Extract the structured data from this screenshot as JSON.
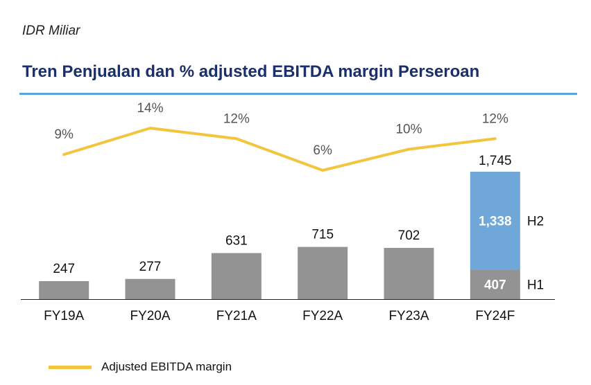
{
  "unit_label": "IDR Miliar",
  "title": "Tren Penjualan dan % adjusted EBITDA margin Perseroan",
  "legend": {
    "margin_label": "Adjusted EBITDA margin"
  },
  "colors": {
    "title": "#1a2f6b",
    "rule": "#5ba3dd",
    "bar": "#939393",
    "h2_bar": "#6fa7d8",
    "line": "#f2c53d"
  },
  "chart_data": {
    "type": "bar",
    "title": "Tren Penjualan dan % adjusted EBITDA margin Perseroan",
    "ylabel": "IDR Miliar",
    "categories": [
      "FY19A",
      "FY20A",
      "FY21A",
      "FY22A",
      "FY23A",
      "FY24F"
    ],
    "sales": [
      247,
      277,
      631,
      715,
      702,
      1745
    ],
    "sales_labels": [
      "247",
      "277",
      "631",
      "715",
      "702",
      "1,745"
    ],
    "stacked_last": {
      "h1": 407,
      "h1_label": "407",
      "h1_name": "H1",
      "h2": 1338,
      "h2_label": "1,338",
      "h2_name": "H2"
    },
    "margin": {
      "name": "Adjusted EBITDA margin",
      "values": [
        9,
        14,
        12,
        6,
        10,
        12
      ],
      "labels": [
        "9%",
        "14%",
        "12%",
        "6%",
        "10%",
        "12%"
      ],
      "ylim": [
        0,
        20
      ]
    },
    "ylim": [
      0,
      1800
    ]
  }
}
